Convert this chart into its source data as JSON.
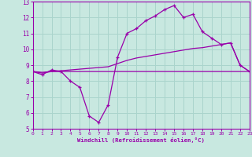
{
  "xlabel": "Windchill (Refroidissement éolien,°C)",
  "x_values": [
    0,
    1,
    2,
    3,
    4,
    5,
    6,
    7,
    8,
    9,
    10,
    11,
    12,
    13,
    14,
    15,
    16,
    17,
    18,
    19,
    20,
    21,
    22,
    23
  ],
  "line1_y": [
    8.6,
    8.4,
    8.7,
    8.6,
    8.0,
    7.6,
    5.8,
    5.4,
    6.5,
    9.5,
    11.0,
    11.3,
    11.8,
    12.1,
    12.5,
    12.75,
    12.0,
    12.2,
    11.1,
    10.7,
    10.3,
    10.4,
    9.0,
    8.6
  ],
  "line2_y": [
    8.6,
    8.5,
    8.6,
    8.65,
    8.7,
    8.75,
    8.8,
    8.85,
    8.9,
    9.1,
    9.3,
    9.45,
    9.55,
    9.65,
    9.75,
    9.85,
    9.95,
    10.05,
    10.1,
    10.2,
    10.3,
    10.4,
    9.0,
    8.6
  ],
  "line3_y": [
    8.6,
    8.55,
    8.6,
    8.6,
    8.6,
    8.6,
    8.6,
    8.6,
    8.6,
    8.6,
    8.6,
    8.6,
    8.6,
    8.6,
    8.6,
    8.6,
    8.6,
    8.6,
    8.6,
    8.6,
    8.6,
    8.6,
    8.6,
    8.6
  ],
  "line_color": "#9900aa",
  "bg_color": "#c8e8e0",
  "grid_color": "#aad4cc",
  "axis_color": "#9900aa",
  "ylim": [
    5,
    13
  ],
  "xlim": [
    0,
    23
  ],
  "yticks": [
    5,
    6,
    7,
    8,
    9,
    10,
    11,
    12,
    13
  ],
  "xticks": [
    0,
    1,
    2,
    3,
    4,
    5,
    6,
    7,
    8,
    9,
    10,
    11,
    12,
    13,
    14,
    15,
    16,
    17,
    18,
    19,
    20,
    21,
    22,
    23
  ]
}
